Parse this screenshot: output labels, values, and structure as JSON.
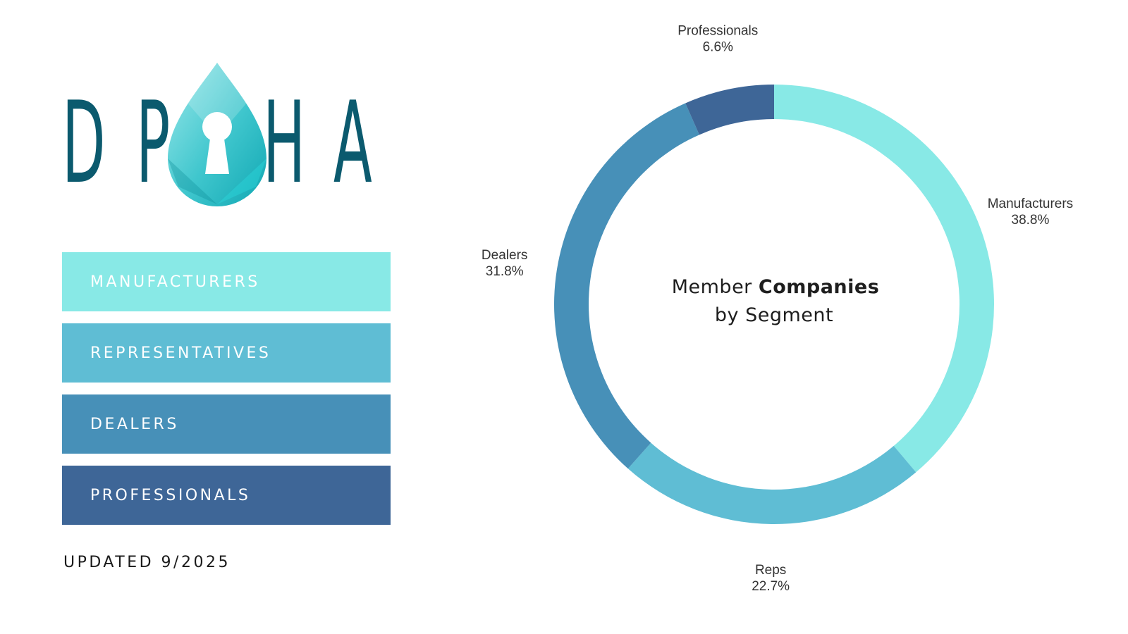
{
  "logo": {
    "letters": [
      "D",
      "P",
      "H",
      "A"
    ]
  },
  "segments": [
    {
      "label": "MANUFACTURERS",
      "color": "#88e9e6"
    },
    {
      "label": "REPRESENTATIVES",
      "color": "#5fbdd4"
    },
    {
      "label": "DEALERS",
      "color": "#4790b8"
    },
    {
      "label": "PROFESSIONALS",
      "color": "#3e6697"
    }
  ],
  "updated": "UPDATED 9/2025",
  "chart_data": {
    "type": "pie",
    "center_title_normal": "Member ",
    "center_title_bold": "Companies",
    "center_subtitle": "by Segment",
    "slices": [
      {
        "name": "Manufacturers",
        "value": 38.8,
        "label": "38.8%",
        "color": "#88e9e6"
      },
      {
        "name": "Reps",
        "value": 22.7,
        "label": "22.7%",
        "color": "#5fbdd4"
      },
      {
        "name": "Dealers",
        "value": 31.8,
        "label": "31.8%",
        "color": "#4790b8"
      },
      {
        "name": "Professionals",
        "value": 6.6,
        "label": "6.6%",
        "color": "#3e6697"
      }
    ]
  }
}
